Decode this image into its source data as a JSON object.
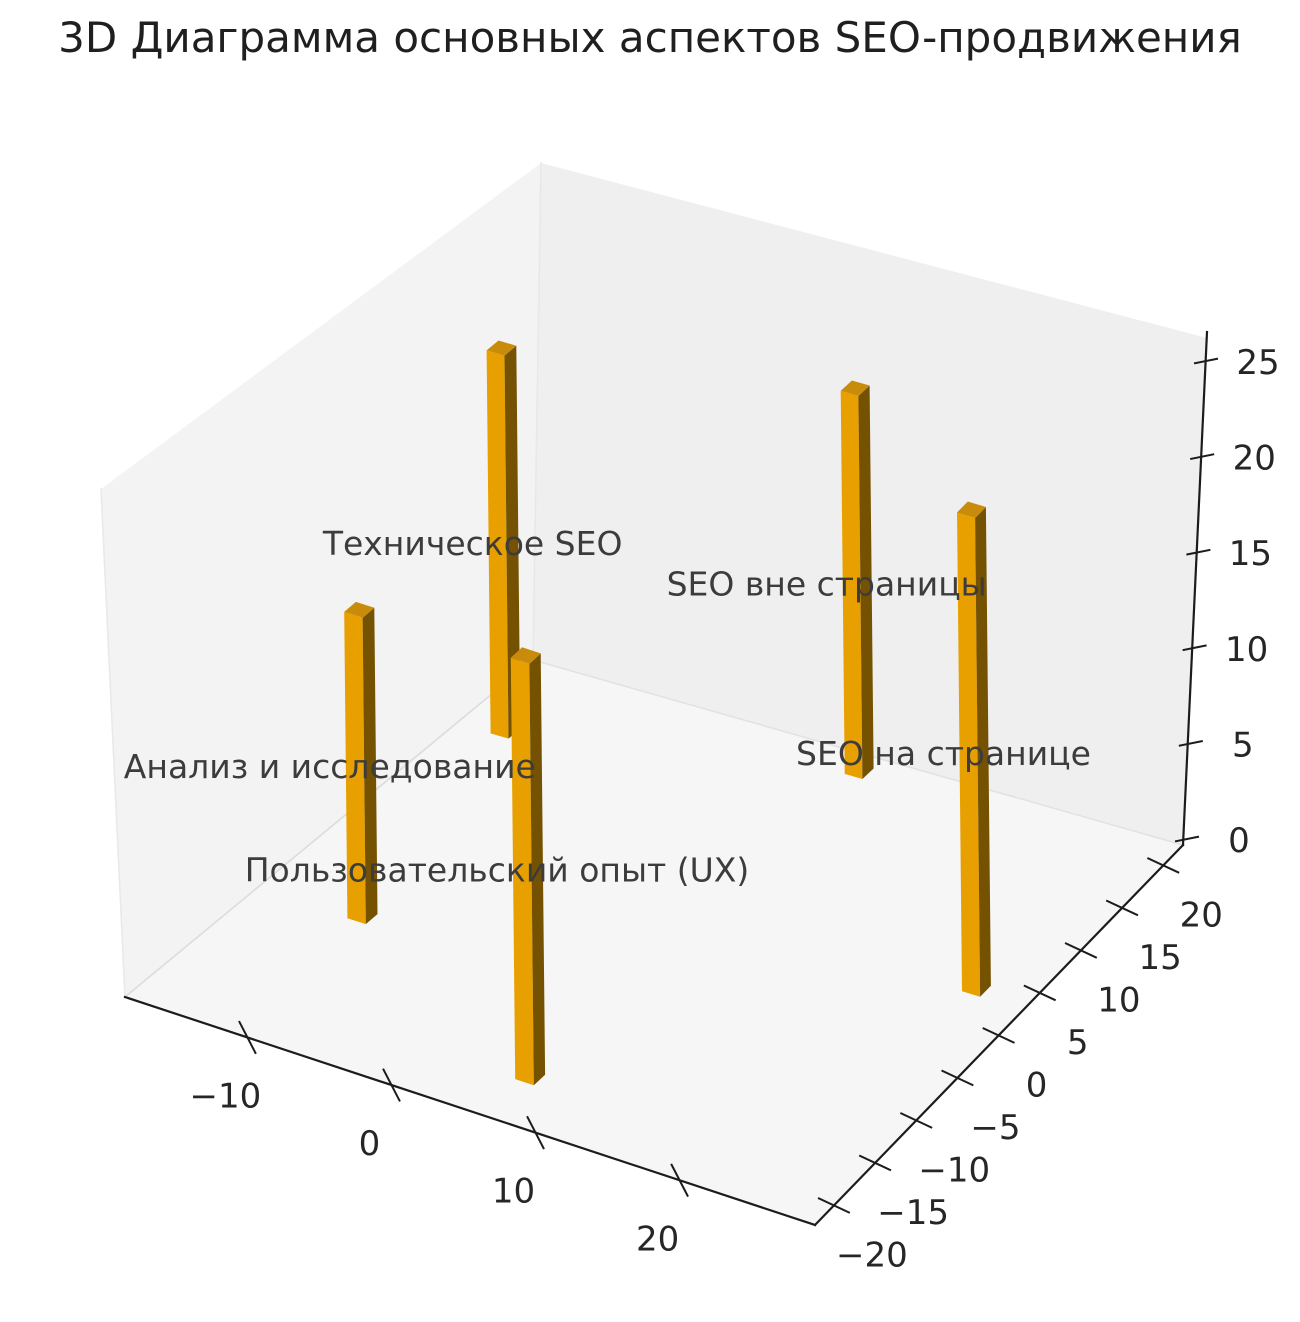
{
  "title": "3D Диаграмма основных аспектов SEO-продвижения",
  "chart_data": {
    "type": "bar",
    "projection": "3d",
    "title": "3D Диаграмма основных аспектов SEO-продвижения",
    "bars": [
      {
        "label": "Техническое SEO",
        "x": -16,
        "y": 14,
        "value": 20
      },
      {
        "label": "SEO вне страницы",
        "x": 6,
        "y": 20,
        "value": 20
      },
      {
        "label": "Анализ и исследование",
        "x": -12,
        "y": -8,
        "value": 16
      },
      {
        "label": "SEO на странице",
        "x": 25,
        "y": 3,
        "value": 25
      },
      {
        "label": "Пользовательский опыт (UX)",
        "x": 6,
        "y": -18,
        "value": 22
      }
    ],
    "x_ticks": [
      -10,
      0,
      10,
      20
    ],
    "y_ticks": [
      -20,
      -15,
      -10,
      -5,
      0,
      5,
      10,
      15,
      20
    ],
    "z_ticks": [
      0,
      5,
      10,
      15,
      20,
      25
    ],
    "xlim": [
      -18.5,
      29.4
    ],
    "ylim": [
      -22.3,
      22.4
    ],
    "zlim": [
      -0.3,
      26.2
    ],
    "view": {
      "elev": 30,
      "azim": -60
    },
    "grid": false,
    "legend": null,
    "colors": {
      "bar_front": "#E8A000",
      "bar_side": "#755201",
      "bar_top": "#C98C0A",
      "pane_left": "#f4f3f4",
      "pane_right": "#efeff0",
      "pane_floor": "#f6f6f7",
      "axis_line": "#1c1c1c",
      "tick_label": "#262626",
      "bar_label": "#3c3c3c",
      "title": "#1f1f1f",
      "background": "#ffffff"
    }
  }
}
